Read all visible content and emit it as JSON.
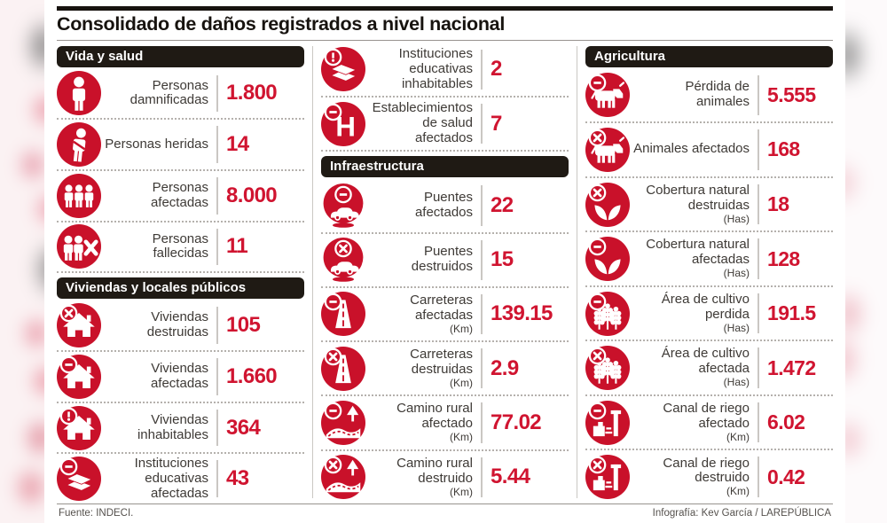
{
  "colors": {
    "accent_red": "#c9112a",
    "number_red": "#d01430",
    "header_bar_bg": "#1f1a14",
    "label_text": "#3e3a36"
  },
  "chart_data": {
    "type": "table",
    "title": "Consolidado de daños registrados a nivel nacional",
    "groups": [
      {
        "title": "Vida y salud",
        "items": [
          {
            "icon": "person-icon",
            "label": "Personas damnificadas",
            "value": "1.800"
          },
          {
            "icon": "injured-person-icon",
            "label": "Personas heridas",
            "value": "14"
          },
          {
            "icon": "people-group-icon",
            "label": "Personas afectadas",
            "value": "8.000"
          },
          {
            "icon": "deceased-people-icon",
            "label": "Personas fallecidas",
            "value": "11"
          }
        ]
      },
      {
        "title": "Viviendas y locales públicos",
        "items": [
          {
            "icon": "house-x-icon",
            "label": "Viviendas destruidas",
            "value": "105"
          },
          {
            "icon": "house-minus-icon",
            "label": "Viviendas afectadas",
            "value": "1.660"
          },
          {
            "icon": "house-exclamation-icon",
            "label": "Viviendas inhabitables",
            "value": "364"
          },
          {
            "icon": "books-minus-icon",
            "label": "Instituciones educativas afectadas",
            "value": "43"
          }
        ]
      },
      {
        "title": "",
        "items": [
          {
            "icon": "books-exclamation-icon",
            "label": "Instituciones educativas inhabitables",
            "value": "2"
          },
          {
            "icon": "hospital-minus-icon",
            "label": "Establecimientos de salud afectados",
            "value": "7"
          }
        ]
      },
      {
        "title": "Infraestructura",
        "items": [
          {
            "icon": "bridge-car-minus-icon",
            "label": "Puentes afectados",
            "value": "22"
          },
          {
            "icon": "bridge-car-x-icon",
            "label": "Puentes destruidos",
            "value": "15"
          },
          {
            "icon": "road-minus-icon",
            "label": "Carreteras afectadas",
            "unit": "(Km)",
            "value": "139.15"
          },
          {
            "icon": "road-x-icon",
            "label": "Carreteras destruidas",
            "unit": "(Km)",
            "value": "2.9"
          },
          {
            "icon": "rural-road-minus-icon",
            "label": "Camino rural afectado",
            "unit": "(Km)",
            "value": "77.02"
          },
          {
            "icon": "rural-road-x-icon",
            "label": "Camino rural destruido",
            "unit": "(Km)",
            "value": "5.44"
          }
        ]
      },
      {
        "title": "Agricultura",
        "items": [
          {
            "icon": "cow-minus-icon",
            "label": "Pérdida de animales",
            "value": "5.555"
          },
          {
            "icon": "cow-x-icon",
            "label": "Animales afectados",
            "value": "168"
          },
          {
            "icon": "plant-x-icon",
            "label": "Cobertura natural destruidas",
            "unit": "(Has)",
            "value": "18"
          },
          {
            "icon": "plant-minus-icon",
            "label": "Cobertura natural afectadas",
            "unit": "(Has)",
            "value": "128"
          },
          {
            "icon": "wheat-minus-icon",
            "label": "Área de cultivo perdida",
            "unit": "(Has)",
            "value": "191.5"
          },
          {
            "icon": "wheat-x-icon",
            "label": "Área de cultivo afectada",
            "unit": "(Has)",
            "value": "1.472"
          },
          {
            "icon": "canal-minus-icon",
            "label": "Canal de riego afectado",
            "unit": "(Km)",
            "value": "6.02"
          },
          {
            "icon": "canal-x-icon",
            "label": "Canal de riego destruido",
            "unit": "(Km)",
            "value": "0.42"
          }
        ]
      }
    ]
  },
  "footer": {
    "source": "Fuente: INDECI.",
    "credit": "Infografía: Kev García / LAREPÚBLICA"
  }
}
